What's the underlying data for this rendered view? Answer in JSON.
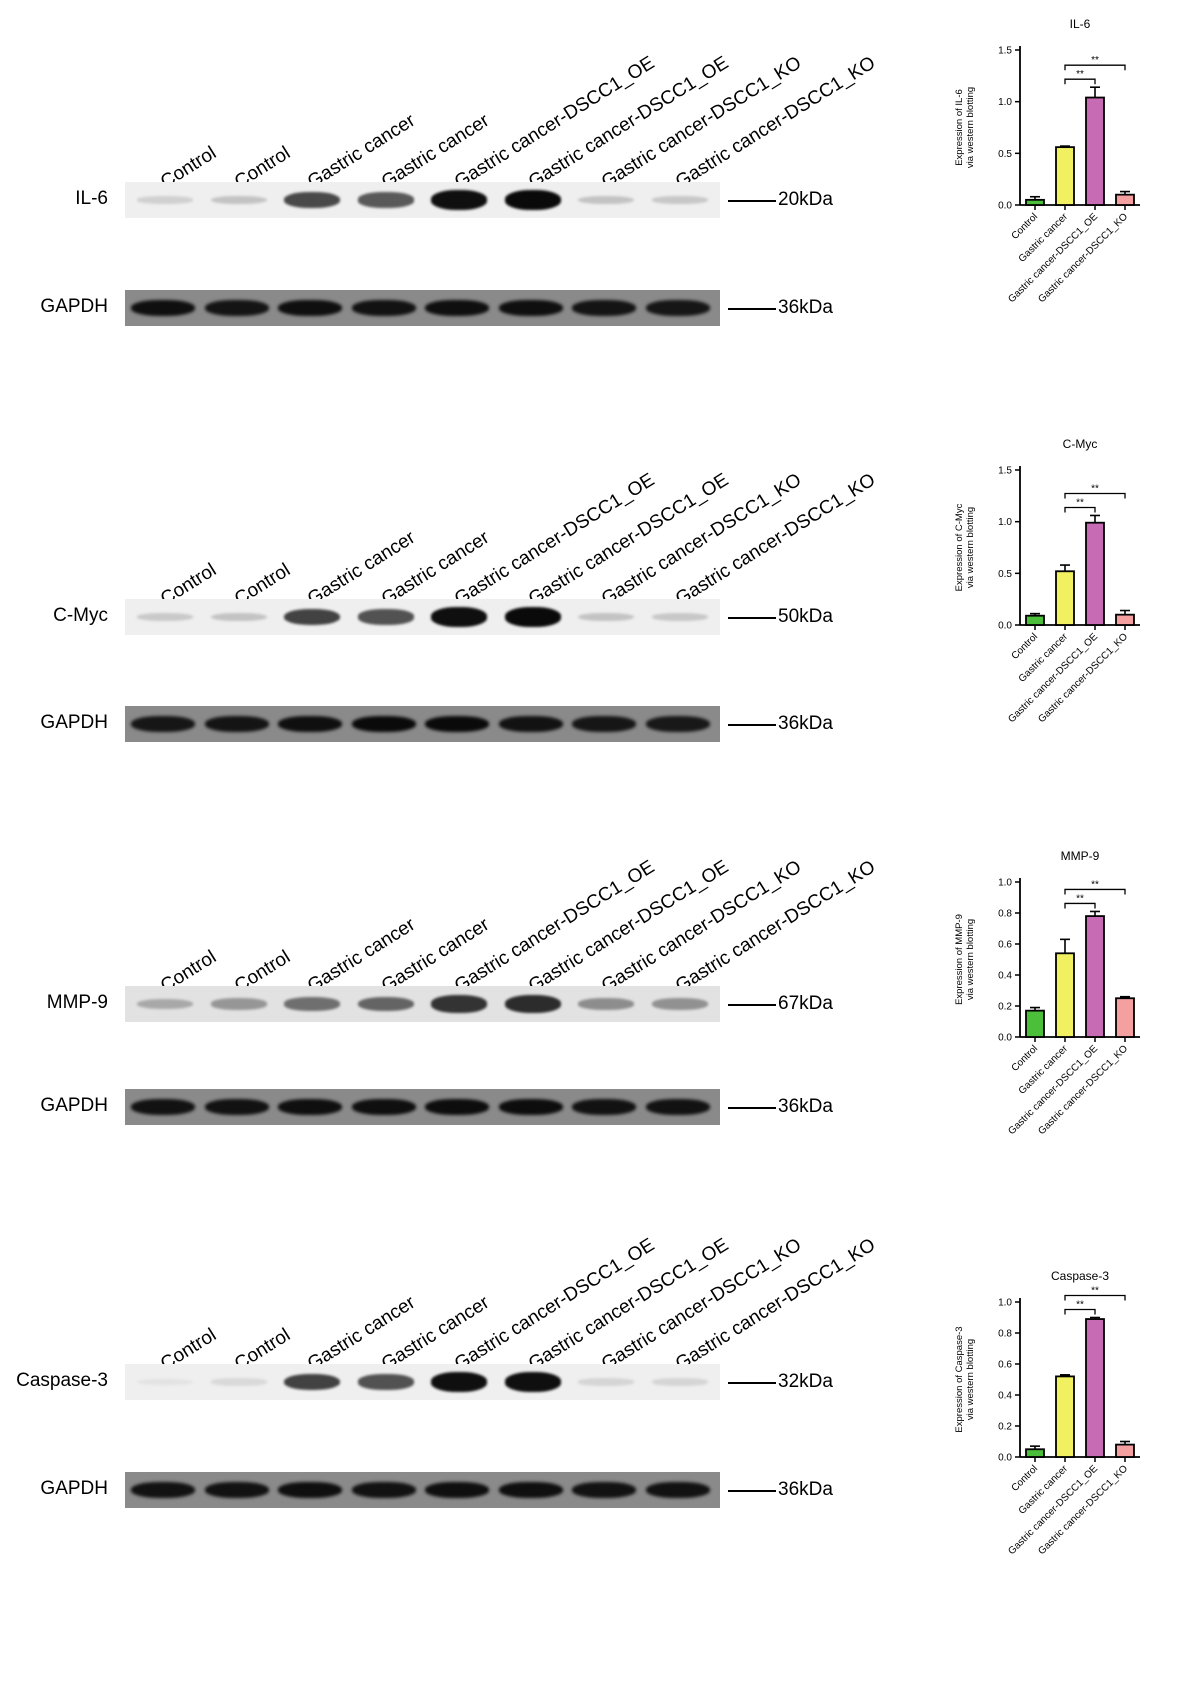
{
  "lanes": [
    "Control",
    "Control",
    "Gastric cancer",
    "Gastric cancer",
    "Gastric cancer-DSCC1_OE",
    "Gastric cancer-DSCC1_OE",
    "Gastric cancer-DSCC1_KO",
    "Gastric cancer-DSCC1_KO"
  ],
  "blots": [
    {
      "target": "IL-6",
      "target_size": "20kDa",
      "loading": "GAPDH",
      "loading_size": "36kDa",
      "target_intensity": [
        0.12,
        0.18,
        0.72,
        0.65,
        0.98,
        1.0,
        0.18,
        0.16
      ],
      "loading_intensity": [
        0.95,
        0.9,
        0.95,
        0.92,
        0.95,
        0.95,
        0.9,
        0.88
      ]
    },
    {
      "target": "C-Myc",
      "target_size": "50kDa",
      "loading": "GAPDH",
      "loading_size": "36kDa",
      "target_intensity": [
        0.15,
        0.18,
        0.75,
        0.68,
        0.98,
        1.0,
        0.18,
        0.16
      ],
      "loading_intensity": [
        0.88,
        0.9,
        0.95,
        1.0,
        1.0,
        0.92,
        0.88,
        0.86
      ]
    },
    {
      "target": "MMP-9",
      "target_size": "67kDa",
      "loading": "GAPDH",
      "loading_size": "36kDa",
      "target_intensity": [
        0.3,
        0.38,
        0.55,
        0.6,
        0.82,
        0.85,
        0.42,
        0.4
      ],
      "loading_intensity": [
        0.92,
        0.92,
        0.95,
        0.95,
        0.97,
        0.97,
        0.92,
        0.92
      ]
    },
    {
      "target": "Caspase-3",
      "target_size": "32kDa",
      "loading": "GAPDH",
      "loading_size": "36kDa",
      "target_intensity": [
        0.04,
        0.08,
        0.75,
        0.68,
        0.98,
        0.98,
        0.1,
        0.1
      ],
      "loading_intensity": [
        0.92,
        0.92,
        0.95,
        0.92,
        0.95,
        0.95,
        0.92,
        0.92
      ]
    }
  ],
  "chart_data": [
    {
      "type": "bar",
      "title": "IL-6",
      "ylabel": "Expression of IL-6\nvia western blotting",
      "categories": [
        "Control",
        "Gastric cancer",
        "Gastric cancer-DSCC1_OE",
        "Gastric cancer-DSCC1_KO"
      ],
      "values": [
        0.05,
        0.56,
        1.04,
        0.1
      ],
      "errors": [
        0.03,
        0.01,
        0.1,
        0.03
      ],
      "ylim": [
        0,
        1.5
      ],
      "yticks": [
        "0.0",
        "0.5",
        "1.0",
        "1.5"
      ],
      "ytick_values": [
        0,
        0.5,
        1.0,
        1.5
      ],
      "significance": [
        "**",
        "**"
      ],
      "colors": [
        "#4cbf3a",
        "#f0f060",
        "#c86bb5",
        "#f5a0a0"
      ]
    },
    {
      "type": "bar",
      "title": "C-Myc",
      "ylabel": "Expression of C-Myc\nvia western blotting",
      "categories": [
        "Control",
        "Gastric cancer",
        "Gastric cancer-DSCC1_OE",
        "Gastric cancer-DSCC1_KO"
      ],
      "values": [
        0.09,
        0.52,
        0.99,
        0.1
      ],
      "errors": [
        0.02,
        0.06,
        0.07,
        0.04
      ],
      "ylim": [
        0,
        1.5
      ],
      "yticks": [
        "0.0",
        "0.5",
        "1.0",
        "1.5"
      ],
      "ytick_values": [
        0,
        0.5,
        1.0,
        1.5
      ],
      "significance": [
        "**",
        "**"
      ],
      "colors": [
        "#4cbf3a",
        "#f0f060",
        "#c86bb5",
        "#f5a0a0"
      ]
    },
    {
      "type": "bar",
      "title": "MMP-9",
      "ylabel": "Expression of MMP-9\nvia western blotting",
      "categories": [
        "Control",
        "Gastric cancer",
        "Gastric cancer-DSCC1_OE",
        "Gastric cancer-DSCC1_KO"
      ],
      "values": [
        0.17,
        0.54,
        0.78,
        0.25
      ],
      "errors": [
        0.02,
        0.09,
        0.03,
        0.01
      ],
      "ylim": [
        0,
        1.0
      ],
      "yticks": [
        "0.0",
        "0.2",
        "0.4",
        "0.6",
        "0.8",
        "1.0"
      ],
      "ytick_values": [
        0,
        0.2,
        0.4,
        0.6,
        0.8,
        1.0
      ],
      "significance": [
        "**",
        "**"
      ],
      "colors": [
        "#4cbf3a",
        "#f0f060",
        "#c86bb5",
        "#f5a0a0"
      ]
    },
    {
      "type": "bar",
      "title": "Caspase-3",
      "ylabel": "Expression of Caspase-3\nvia western blotting",
      "categories": [
        "Control",
        "Gastric cancer",
        "Gastric cancer-DSCC1_OE",
        "Gastric cancer-DSCC1_KO"
      ],
      "values": [
        0.05,
        0.52,
        0.89,
        0.08
      ],
      "errors": [
        0.02,
        0.01,
        0.01,
        0.02
      ],
      "ylim": [
        0,
        1.0
      ],
      "yticks": [
        "0.0",
        "0.2",
        "0.4",
        "0.6",
        "0.8",
        "1.0"
      ],
      "ytick_values": [
        0,
        0.2,
        0.4,
        0.6,
        0.8,
        1.0
      ],
      "significance": [
        "**",
        "**"
      ],
      "colors": [
        "#4cbf3a",
        "#f0f060",
        "#c86bb5",
        "#f5a0a0"
      ]
    }
  ]
}
